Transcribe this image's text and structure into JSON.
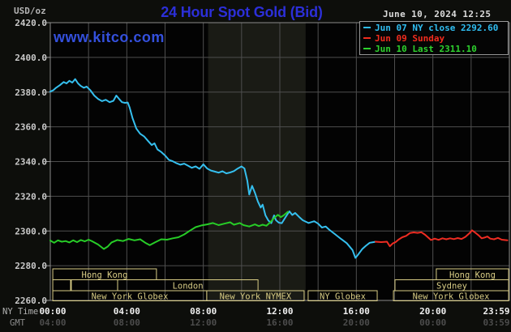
{
  "header": {
    "units_label": "USD/oz",
    "title": "24 Hour Spot Gold (Bid)",
    "datetime": "June 10, 2024 12:25",
    "watermark": "www.kitco.com"
  },
  "legend": {
    "items": [
      {
        "label": "Jun 07 NY close 2292.60",
        "color": "#2fbdf1"
      },
      {
        "label": "Jun 09 Sunday",
        "color": "#f22c1e"
      },
      {
        "label": "Jun 10 Last 2311.10",
        "color": "#2ed32e"
      }
    ]
  },
  "axes": {
    "ny_time_label": "NY Time",
    "gmt_label": "GMT",
    "ny_times": [
      "00:00",
      "04:00",
      "08:00",
      "12:00",
      "16:00",
      "20:00",
      "23:59"
    ],
    "gmt_times": [
      "04:00",
      "08:00",
      "12:00",
      "16:00",
      "20:00",
      "00:00",
      "03:59"
    ]
  },
  "colors": {
    "page_bg": "#0d0e0b",
    "plot_bg": "#030303",
    "nymex_band": "#1a1b15",
    "grid": "#4e4e4e",
    "border": "#8a8a8a",
    "tick_mark": "#999999",
    "y_tick_text": "#c9c9c9",
    "session": "#d8cc85",
    "cyan": "#35bfee",
    "red": "#ee2c22",
    "green": "#27cc27"
  },
  "chart_data": {
    "type": "line",
    "title": "24 Hour Spot Gold (Bid)",
    "ylabel": "USD/oz",
    "ylim": [
      2260,
      2420
    ],
    "xlim_hours": [
      0,
      24
    ],
    "y_tick_step": 20,
    "x_gridline_step_hours": 2,
    "x_tick_hours": [
      0,
      4,
      8,
      12,
      16,
      20,
      23.98
    ],
    "grid": true,
    "legend_position": "top-right",
    "nymex_band_hours": [
      8.25,
      13.35
    ],
    "series": [
      {
        "name": "Jun 07 NY close 2292.60",
        "color_key": "cyan",
        "points": [
          [
            0.0,
            2380.3
          ],
          [
            0.15,
            2381.0
          ],
          [
            0.3,
            2382.5
          ],
          [
            0.5,
            2384.0
          ],
          [
            0.7,
            2385.8
          ],
          [
            0.85,
            2385.0
          ],
          [
            1.0,
            2386.5
          ],
          [
            1.15,
            2385.5
          ],
          [
            1.3,
            2387.5
          ],
          [
            1.45,
            2385.0
          ],
          [
            1.6,
            2383.5
          ],
          [
            1.75,
            2382.5
          ],
          [
            1.9,
            2383.2
          ],
          [
            2.1,
            2381.0
          ],
          [
            2.3,
            2378.0
          ],
          [
            2.5,
            2376.0
          ],
          [
            2.7,
            2374.8
          ],
          [
            2.9,
            2375.6
          ],
          [
            3.1,
            2374.2
          ],
          [
            3.3,
            2375.0
          ],
          [
            3.45,
            2378.0
          ],
          [
            3.6,
            2376.0
          ],
          [
            3.75,
            2374.2
          ],
          [
            3.9,
            2373.8
          ],
          [
            4.05,
            2374.0
          ],
          [
            4.15,
            2371.0
          ],
          [
            4.3,
            2365.0
          ],
          [
            4.5,
            2359.0
          ],
          [
            4.7,
            2356.0
          ],
          [
            4.9,
            2354.5
          ],
          [
            5.1,
            2352.0
          ],
          [
            5.3,
            2349.5
          ],
          [
            5.45,
            2350.5
          ],
          [
            5.6,
            2347.0
          ],
          [
            5.8,
            2345.5
          ],
          [
            6.0,
            2343.5
          ],
          [
            6.2,
            2341.0
          ],
          [
            6.4,
            2340.2
          ],
          [
            6.6,
            2339.0
          ],
          [
            6.8,
            2338.2
          ],
          [
            7.0,
            2338.8
          ],
          [
            7.2,
            2337.6
          ],
          [
            7.4,
            2336.4
          ],
          [
            7.6,
            2337.2
          ],
          [
            7.8,
            2335.8
          ],
          [
            8.0,
            2338.4
          ],
          [
            8.2,
            2336.0
          ],
          [
            8.4,
            2334.8
          ],
          [
            8.6,
            2334.2
          ],
          [
            8.8,
            2333.6
          ],
          [
            9.0,
            2334.4
          ],
          [
            9.2,
            2333.2
          ],
          [
            9.4,
            2333.7
          ],
          [
            9.6,
            2334.5
          ],
          [
            9.8,
            2336.0
          ],
          [
            10.0,
            2337.2
          ],
          [
            10.15,
            2336.0
          ],
          [
            10.3,
            2329.0
          ],
          [
            10.4,
            2321.0
          ],
          [
            10.55,
            2326.0
          ],
          [
            10.7,
            2322.0
          ],
          [
            10.85,
            2317.0
          ],
          [
            11.0,
            2313.5
          ],
          [
            11.1,
            2315.2
          ],
          [
            11.25,
            2309.0
          ],
          [
            11.4,
            2306.0
          ],
          [
            11.55,
            2304.5
          ],
          [
            11.7,
            2309.0
          ],
          [
            11.8,
            2306.2
          ],
          [
            11.95,
            2304.8
          ],
          [
            12.1,
            2304.5
          ],
          [
            12.3,
            2308.0
          ],
          [
            12.5,
            2311.3
          ],
          [
            12.65,
            2309.2
          ],
          [
            12.8,
            2310.4
          ],
          [
            13.0,
            2308.2
          ],
          [
            13.2,
            2306.2
          ],
          [
            13.5,
            2304.6
          ],
          [
            13.8,
            2305.6
          ],
          [
            14.0,
            2304.2
          ],
          [
            14.2,
            2302.0
          ],
          [
            14.4,
            2302.6
          ],
          [
            14.6,
            2300.6
          ],
          [
            14.9,
            2298.0
          ],
          [
            15.2,
            2295.4
          ],
          [
            15.5,
            2293.0
          ],
          [
            15.8,
            2289.0
          ],
          [
            15.95,
            2284.5
          ],
          [
            16.1,
            2286.5
          ],
          [
            16.3,
            2289.5
          ],
          [
            16.5,
            2291.5
          ],
          [
            16.7,
            2293.2
          ],
          [
            16.9,
            2293.6
          ],
          [
            17.0,
            2293.8
          ]
        ]
      },
      {
        "name": "Jun 09 Sunday",
        "color_key": "red",
        "points": [
          [
            17.0,
            2293.8
          ],
          [
            17.3,
            2293.6
          ],
          [
            17.6,
            2293.8
          ],
          [
            17.75,
            2291.2
          ],
          [
            17.9,
            2292.8
          ],
          [
            18.05,
            2293.6
          ],
          [
            18.2,
            2295.0
          ],
          [
            18.4,
            2296.4
          ],
          [
            18.6,
            2297.2
          ],
          [
            18.8,
            2298.8
          ],
          [
            19.0,
            2299.2
          ],
          [
            19.2,
            2298.9
          ],
          [
            19.4,
            2299.3
          ],
          [
            19.6,
            2297.8
          ],
          [
            19.9,
            2294.8
          ],
          [
            20.1,
            2295.6
          ],
          [
            20.3,
            2294.9
          ],
          [
            20.5,
            2295.8
          ],
          [
            20.7,
            2295.2
          ],
          [
            20.9,
            2295.8
          ],
          [
            21.1,
            2295.3
          ],
          [
            21.3,
            2295.9
          ],
          [
            21.5,
            2295.4
          ],
          [
            21.7,
            2296.6
          ],
          [
            21.9,
            2298.6
          ],
          [
            22.05,
            2300.4
          ],
          [
            22.2,
            2299.2
          ],
          [
            22.4,
            2297.4
          ],
          [
            22.55,
            2295.8
          ],
          [
            22.7,
            2296.2
          ],
          [
            22.85,
            2296.8
          ],
          [
            23.0,
            2295.6
          ],
          [
            23.2,
            2295.2
          ],
          [
            23.4,
            2296.0
          ],
          [
            23.6,
            2295.0
          ],
          [
            23.75,
            2294.8
          ],
          [
            23.9,
            2294.6
          ]
        ]
      },
      {
        "name": "Jun 10 Last 2311.10",
        "color_key": "green",
        "points": [
          [
            0.0,
            2294.5
          ],
          [
            0.2,
            2293.2
          ],
          [
            0.4,
            2294.6
          ],
          [
            0.6,
            2293.8
          ],
          [
            0.8,
            2294.2
          ],
          [
            1.0,
            2293.4
          ],
          [
            1.2,
            2294.6
          ],
          [
            1.4,
            2293.6
          ],
          [
            1.6,
            2294.8
          ],
          [
            1.8,
            2294.0
          ],
          [
            2.0,
            2295.0
          ],
          [
            2.2,
            2294.0
          ],
          [
            2.5,
            2292.2
          ],
          [
            2.8,
            2289.6
          ],
          [
            3.0,
            2291.0
          ],
          [
            3.2,
            2293.4
          ],
          [
            3.5,
            2294.8
          ],
          [
            3.8,
            2294.2
          ],
          [
            4.1,
            2295.4
          ],
          [
            4.4,
            2294.6
          ],
          [
            4.7,
            2295.2
          ],
          [
            5.0,
            2293.0
          ],
          [
            5.2,
            2291.8
          ],
          [
            5.5,
            2293.6
          ],
          [
            5.8,
            2295.2
          ],
          [
            6.1,
            2295.0
          ],
          [
            6.4,
            2295.8
          ],
          [
            6.7,
            2296.4
          ],
          [
            7.0,
            2298.0
          ],
          [
            7.3,
            2300.2
          ],
          [
            7.6,
            2302.2
          ],
          [
            7.9,
            2303.2
          ],
          [
            8.2,
            2303.8
          ],
          [
            8.5,
            2304.6
          ],
          [
            8.8,
            2303.4
          ],
          [
            9.1,
            2304.2
          ],
          [
            9.4,
            2305.0
          ],
          [
            9.6,
            2303.6
          ],
          [
            9.9,
            2304.6
          ],
          [
            10.1,
            2303.4
          ],
          [
            10.4,
            2302.6
          ],
          [
            10.7,
            2303.8
          ],
          [
            10.9,
            2302.8
          ],
          [
            11.1,
            2303.6
          ],
          [
            11.3,
            2303.0
          ],
          [
            11.5,
            2305.0
          ],
          [
            11.7,
            2307.5
          ],
          [
            11.9,
            2309.3
          ],
          [
            12.05,
            2308.0
          ],
          [
            12.2,
            2309.0
          ],
          [
            12.42,
            2311.1
          ]
        ]
      }
    ],
    "sessions": [
      {
        "row": 0,
        "label": "Hong Kong",
        "start_h": 0.13,
        "end_h": 5.55
      },
      {
        "row": 0,
        "label": "Hong Kong",
        "start_h": 20.18,
        "end_h": 23.96
      },
      {
        "row": 1,
        "label": "",
        "start_h": 0.13,
        "end_h": 1.06
      },
      {
        "row": 1,
        "label": "",
        "start_h": 1.1,
        "end_h": 3.52
      },
      {
        "row": 1,
        "label": "London",
        "start_h": 3.52,
        "end_h": 10.86
      },
      {
        "row": 1,
        "label": "Sydney",
        "start_h": 18.02,
        "end_h": 23.96
      },
      {
        "row": 2,
        "label": "New York Globex",
        "start_h": 0.13,
        "end_h": 8.18
      },
      {
        "row": 2,
        "label": "New York NYMEX",
        "start_h": 8.18,
        "end_h": 13.27
      },
      {
        "row": 2,
        "label": "NY Globex",
        "start_h": 13.48,
        "end_h": 17.09
      },
      {
        "row": 2,
        "label": "New York Globex",
        "start_h": 17.94,
        "end_h": 23.96
      }
    ]
  }
}
